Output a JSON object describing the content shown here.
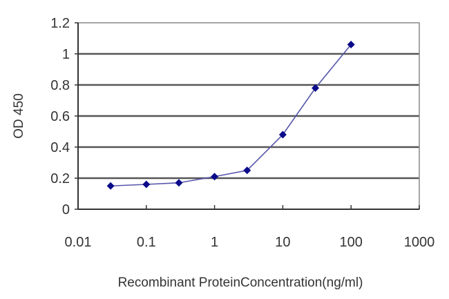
{
  "chart_data": {
    "type": "line",
    "title": "",
    "xlabel": "Recombinant ProteinConcentration(ng/ml)",
    "ylabel": "OD 450",
    "x_scale": "log",
    "xlim": [
      0.01,
      1000
    ],
    "ylim": [
      0,
      1.2
    ],
    "x_ticks": [
      "0.01",
      "0.1",
      "1",
      "10",
      "100",
      "1000"
    ],
    "y_ticks": [
      "0",
      "0.2",
      "0.4",
      "0.6",
      "0.8",
      "1",
      "1.2"
    ],
    "grid": {
      "horizontal": true,
      "vertical": false
    },
    "legend": null,
    "series": [
      {
        "name": "OD 450",
        "color": "#1a1a8c",
        "marker": "diamond",
        "x": [
          0.03,
          0.1,
          0.3,
          1,
          3,
          10,
          30,
          100
        ],
        "values": [
          0.15,
          0.16,
          0.17,
          0.21,
          0.25,
          0.48,
          0.78,
          1.06
        ]
      }
    ]
  },
  "colors": {
    "line": "#5555aa",
    "marker": "#0a0a8a",
    "gridline": "#555555",
    "axis": "#333333",
    "background": "#ffffff"
  }
}
